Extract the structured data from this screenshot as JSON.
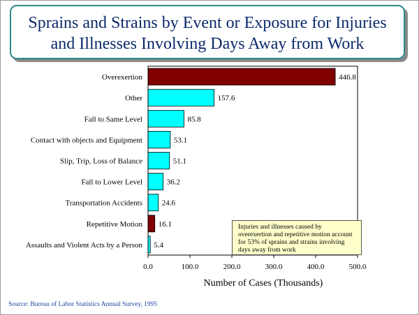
{
  "title_line1": "Sprains and Strains by Event or Exposure for Injuries",
  "title_line2": "and Illnesses Involving Days Away from Work",
  "note": "Injuries and illnesses caused by overexertion and repetitive motion account for 53% of sprains and strains involving days away from work",
  "source": "Source: Bureau of Labor Statistics Annual Survey, 1995",
  "colors": {
    "highlight": "#800000",
    "normal": "#00ffff",
    "title_text": "#0b2a6b",
    "source_text": "#1a3f9a"
  },
  "chart_data": {
    "type": "bar",
    "orientation": "horizontal",
    "categories": [
      "Overexertion",
      "Other",
      "Fall to Same Level",
      "Contact with objects and Equipment",
      "Slip, Trip, Loss of Balance",
      "Fall to Lower Level",
      "Transportation Accidents",
      "Repetitive Motion",
      "Assaults and Violent Acts by a Person"
    ],
    "values": [
      446.8,
      157.6,
      85.8,
      53.1,
      51.1,
      36.2,
      24.6,
      16.1,
      5.4
    ],
    "value_labels": [
      "446.8",
      "157.6",
      "85.8",
      "53.1",
      "51.1",
      "36.2",
      "24.6",
      "16.1",
      "5.4"
    ],
    "highlighted": [
      true,
      false,
      false,
      false,
      false,
      false,
      false,
      true,
      false
    ],
    "xlabel": "Number of Cases  (Thousands)",
    "xlim": [
      0,
      500
    ],
    "xticks": [
      0,
      100,
      200,
      300,
      400,
      500
    ],
    "xtick_labels": [
      "0.0",
      "100.0",
      "200.0",
      "300.0",
      "400.0",
      "500.0"
    ],
    "grid": false,
    "legend": "none"
  }
}
